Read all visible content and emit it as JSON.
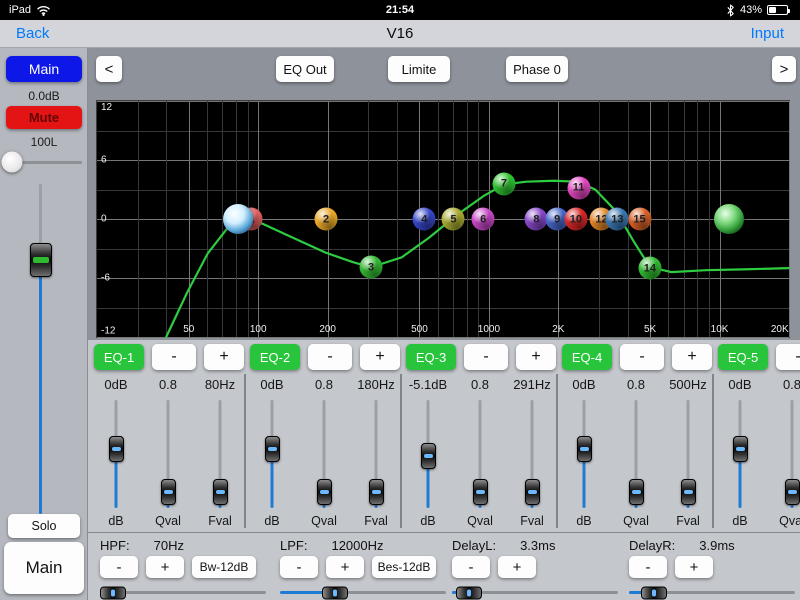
{
  "status_bar": {
    "device": "iPad",
    "time": "21:54",
    "battery_pct": "43%"
  },
  "nav": {
    "back_label": "Back",
    "title": "V16",
    "input_label": "Input"
  },
  "sidebar": {
    "channel_label": "Main",
    "gain_value": "0.0dB",
    "mute_label": "Mute",
    "pan_value": "100L",
    "solo_label": "Solo",
    "output_label": "Main",
    "fader_pct": 23,
    "pan_pct": 10
  },
  "toolbar": {
    "prev_label": "<",
    "eq_out_label": "EQ Out",
    "limite_label": "Limite",
    "phase_label": "Phase 0",
    "next_label": ">"
  },
  "graph": {
    "y_ticks": [
      {
        "label": "12",
        "db": 12
      },
      {
        "label": "6",
        "db": 6
      },
      {
        "label": "0",
        "db": 0
      },
      {
        "label": "-6",
        "db": -6
      },
      {
        "label": "-12",
        "db": -12
      }
    ],
    "x_ticks": [
      {
        "label": "50",
        "f": 50
      },
      {
        "label": "100",
        "f": 100
      },
      {
        "label": "200",
        "f": 200
      },
      {
        "label": "500",
        "f": 500
      },
      {
        "label": "1000",
        "f": 1000
      },
      {
        "label": "2K",
        "f": 2000
      },
      {
        "label": "5K",
        "f": 5000
      },
      {
        "label": "10K",
        "f": 10000
      },
      {
        "label": "20K",
        "f": 20000
      }
    ],
    "curve_color": "#2ecc40",
    "curve": [
      [
        10,
        -12
      ],
      [
        13,
        -7.5
      ],
      [
        16,
        -3.5
      ],
      [
        19,
        -0.8
      ],
      [
        21,
        0.2
      ],
      [
        24,
        -0.5
      ],
      [
        28,
        -1.8
      ],
      [
        33,
        -3.4
      ],
      [
        37,
        -4.4
      ],
      [
        39.6,
        -4.9
      ],
      [
        44,
        -3.9
      ],
      [
        48,
        -1.9
      ],
      [
        52,
        0.4
      ],
      [
        56,
        2.4
      ],
      [
        58.8,
        3.5
      ],
      [
        62,
        3.8
      ],
      [
        66,
        3.9
      ],
      [
        69.4,
        3.8
      ],
      [
        72,
        3.0
      ],
      [
        75,
        0.8
      ],
      [
        77.5,
        -2.2
      ],
      [
        79.9,
        -4.9
      ],
      [
        83,
        -5.4
      ],
      [
        88,
        -5.2
      ],
      [
        94,
        -5.1
      ],
      [
        100,
        -5.0
      ]
    ],
    "balls": [
      {
        "n": "1",
        "color": "#e06060",
        "x": 22.3,
        "db": 0
      },
      {
        "n": "2",
        "color": "#eaa828",
        "x": 33.1,
        "db": 0
      },
      {
        "n": "3",
        "color": "#34b834",
        "x": 39.6,
        "db": -4.9
      },
      {
        "n": "4",
        "color": "#3646c6",
        "x": 47.3,
        "db": 0
      },
      {
        "n": "5",
        "color": "#a8aa30",
        "x": 51.5,
        "db": 0
      },
      {
        "n": "6",
        "color": "#c646c6",
        "x": 55.8,
        "db": 0
      },
      {
        "n": "7",
        "color": "#2ec22e",
        "x": 58.8,
        "db": 3.6
      },
      {
        "n": "8",
        "color": "#8646c8",
        "x": 63.5,
        "db": 0
      },
      {
        "n": "9",
        "color": "#4666c8",
        "x": 66.5,
        "db": 0
      },
      {
        "n": "10",
        "color": "#d82626",
        "x": 69.2,
        "db": 0
      },
      {
        "n": "11",
        "color": "#e046be",
        "x": 69.6,
        "db": 3.2
      },
      {
        "n": "12",
        "color": "#e08628",
        "x": 72.9,
        "db": 0
      },
      {
        "n": "13",
        "color": "#3876b0",
        "x": 75.2,
        "db": 0
      },
      {
        "n": "15",
        "color": "#d66026",
        "x": 78.4,
        "db": 0
      },
      {
        "n": "14",
        "color": "#30b830",
        "x": 79.9,
        "db": -5.0
      }
    ],
    "input_ball": {
      "x": 20.4,
      "db": 0
    },
    "output_ball": {
      "x": 91.4,
      "db": 0
    }
  },
  "band_axis_labels": [
    "dB",
    "Qval",
    "Fval"
  ],
  "eq_bands": [
    {
      "label": "EQ-1",
      "minus": "-",
      "plus": "+",
      "gain": "0dB",
      "q": "0.8",
      "freq": "80Hz",
      "gain_pct": 45,
      "q_pct": 85,
      "f_pct": 85
    },
    {
      "label": "EQ-2",
      "minus": "-",
      "plus": "+",
      "gain": "0dB",
      "q": "0.8",
      "freq": "180Hz",
      "gain_pct": 45,
      "q_pct": 85,
      "f_pct": 85
    },
    {
      "label": "EQ-3",
      "minus": "-",
      "plus": "+",
      "gain": "-5.1dB",
      "q": "0.8",
      "freq": "291Hz",
      "gain_pct": 52,
      "q_pct": 85,
      "f_pct": 85
    },
    {
      "label": "EQ-4",
      "minus": "-",
      "plus": "+",
      "gain": "0dB",
      "q": "0.8",
      "freq": "500Hz",
      "gain_pct": 45,
      "q_pct": 85,
      "f_pct": 85
    },
    {
      "label": "EQ-5",
      "minus": "-",
      "plus": "+",
      "gain": "0dB",
      "q": "0.8",
      "freq": "",
      "gain_pct": 45,
      "q_pct": 85,
      "f_pct": 85
    }
  ],
  "filters": [
    {
      "label": "HPF:",
      "value": "70Hz",
      "minus": "-",
      "plus": "+",
      "type": "Bw-12dB",
      "slider_pct": 8
    },
    {
      "label": "LPF:",
      "value": "12000Hz",
      "minus": "-",
      "plus": "+",
      "type": "Bes-12dB",
      "slider_pct": 33
    },
    {
      "label": "DelayL:",
      "value": "3.3ms",
      "minus": "-",
      "plus": "+",
      "type": "",
      "slider_pct": 10
    },
    {
      "label": "DelayR:",
      "value": "3.9ms",
      "minus": "-",
      "plus": "+",
      "type": "",
      "slider_pct": 15
    }
  ]
}
